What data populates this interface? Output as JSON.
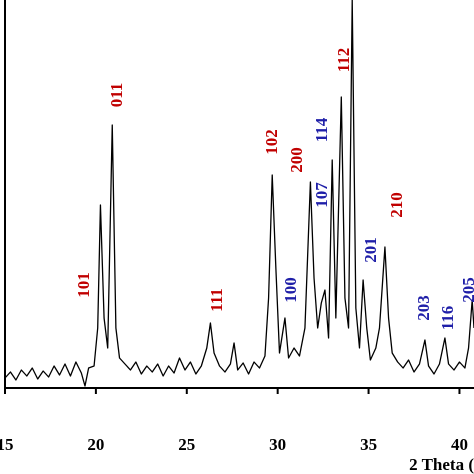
{
  "chart_data": {
    "type": "line",
    "x_label": "2 Theta (",
    "xlim": [
      15,
      40.8
    ],
    "ylim": [
      0,
      388
    ],
    "xticks": [
      15,
      20,
      25,
      30,
      35,
      40
    ],
    "x": [
      15.0,
      15.3,
      15.6,
      15.9,
      16.2,
      16.5,
      16.8,
      17.1,
      17.4,
      17.7,
      18.0,
      18.3,
      18.6,
      18.9,
      19.2,
      19.4,
      19.6,
      19.9,
      20.1,
      20.25,
      20.45,
      20.65,
      20.9,
      21.1,
      21.3,
      21.6,
      21.9,
      22.2,
      22.5,
      22.8,
      23.1,
      23.4,
      23.7,
      24.0,
      24.3,
      24.6,
      24.9,
      25.2,
      25.5,
      25.8,
      26.1,
      26.3,
      26.5,
      26.8,
      27.1,
      27.4,
      27.6,
      27.8,
      28.1,
      28.4,
      28.7,
      29.0,
      29.3,
      29.5,
      29.7,
      29.9,
      30.1,
      30.4,
      30.6,
      30.9,
      31.2,
      31.5,
      31.8,
      32.0,
      32.2,
      32.4,
      32.6,
      32.8,
      33.0,
      33.2,
      33.5,
      33.7,
      33.9,
      34.1,
      34.3,
      34.5,
      34.7,
      34.9,
      35.1,
      35.4,
      35.6,
      35.9,
      36.1,
      36.3,
      36.6,
      36.9,
      37.2,
      37.5,
      37.8,
      38.1,
      38.3,
      38.6,
      38.9,
      39.2,
      39.4,
      39.7,
      40.0,
      40.3,
      40.5,
      40.7,
      40.8
    ],
    "series": [
      {
        "color": "#000000",
        "values": [
          10,
          16,
          8,
          18,
          12,
          20,
          9,
          17,
          11,
          22,
          13,
          24,
          12,
          26,
          15,
          2,
          20,
          22,
          60,
          183,
          70,
          40,
          263,
          60,
          30,
          24,
          18,
          26,
          14,
          22,
          16,
          24,
          12,
          22,
          15,
          30,
          18,
          26,
          14,
          22,
          40,
          65,
          35,
          22,
          16,
          24,
          45,
          18,
          25,
          14,
          26,
          20,
          32,
          90,
          213,
          120,
          35,
          70,
          30,
          40,
          32,
          60,
          206,
          110,
          60,
          85,
          98,
          50,
          228,
          70,
          291,
          90,
          60,
          388,
          80,
          40,
          108,
          60,
          28,
          40,
          60,
          141,
          70,
          35,
          26,
          20,
          28,
          16,
          24,
          48,
          22,
          14,
          24,
          50,
          24,
          18,
          26,
          20,
          40,
          88,
          60
        ]
      }
    ],
    "annotations": [
      {
        "text": "101",
        "color": "#c00000"
      },
      {
        "text": "011",
        "color": "#c00000"
      },
      {
        "text": "111",
        "color": "#c00000"
      },
      {
        "text": "102",
        "color": "#c00000"
      },
      {
        "text": "100",
        "color": "#1f1fa8"
      },
      {
        "text": "200",
        "color": "#c00000"
      },
      {
        "text": "107",
        "color": "#1f1fa8"
      },
      {
        "text": "114",
        "color": "#1f1fa8"
      },
      {
        "text": "112",
        "color": "#c00000"
      },
      {
        "text": "201",
        "color": "#1f1fa8"
      },
      {
        "text": "210",
        "color": "#c00000"
      },
      {
        "text": "203",
        "color": "#1f1fa8"
      },
      {
        "text": "116",
        "color": "#1f1fa8"
      },
      {
        "text": "205",
        "color": "#1f1fa8"
      }
    ]
  }
}
